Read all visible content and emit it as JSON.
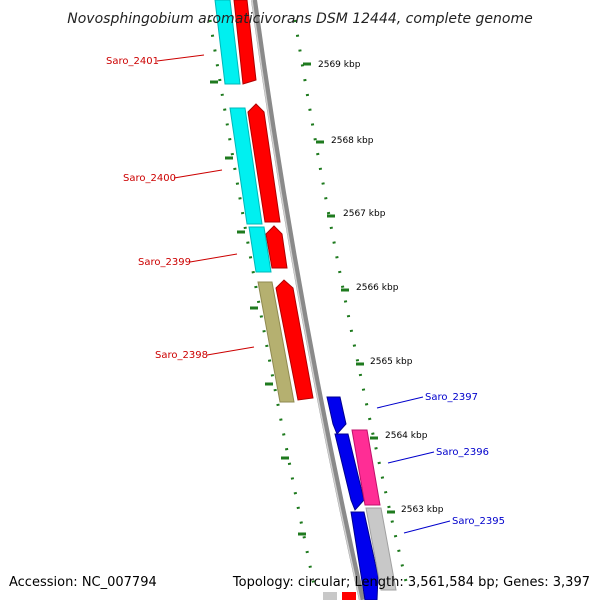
{
  "title": "Novosphingobium aromaticivorans DSM 12444, complete genome",
  "accession": "Accession: NC_007794",
  "summary": "Topology: circular; Length: 3,561,584 bp; Genes: 3,397",
  "ruler": [
    "2569 kbp",
    "2568 kbp",
    "2567 kbp",
    "2566 kbp",
    "2565 kbp",
    "2564 kbp",
    "2563 kbp"
  ],
  "genes": [
    {
      "name": "Saro_2401",
      "strand": "reverse",
      "label_color": "#cc0000"
    },
    {
      "name": "Saro_2400",
      "strand": "reverse",
      "label_color": "#cc0000"
    },
    {
      "name": "Saro_2399",
      "strand": "reverse",
      "label_color": "#cc0000"
    },
    {
      "name": "Saro_2398",
      "strand": "reverse",
      "label_color": "#cc0000"
    },
    {
      "name": "Saro_2397",
      "strand": "forward",
      "label_color": "#0000cc"
    },
    {
      "name": "Saro_2396",
      "strand": "forward",
      "label_color": "#0000cc"
    },
    {
      "name": "Saro_2395",
      "strand": "forward",
      "label_color": "#0000cc"
    }
  ],
  "colors": {
    "cds": "#ff0000",
    "cds_forward": "#0000ee",
    "cog_cyan": "#00f0f0",
    "cog_olive": "#b5b070",
    "cog_pink": "#ff2d95",
    "cog_grey": "#c8c8c8",
    "backbone": "#8a8a8a",
    "ticks": "#1e7a1e"
  }
}
